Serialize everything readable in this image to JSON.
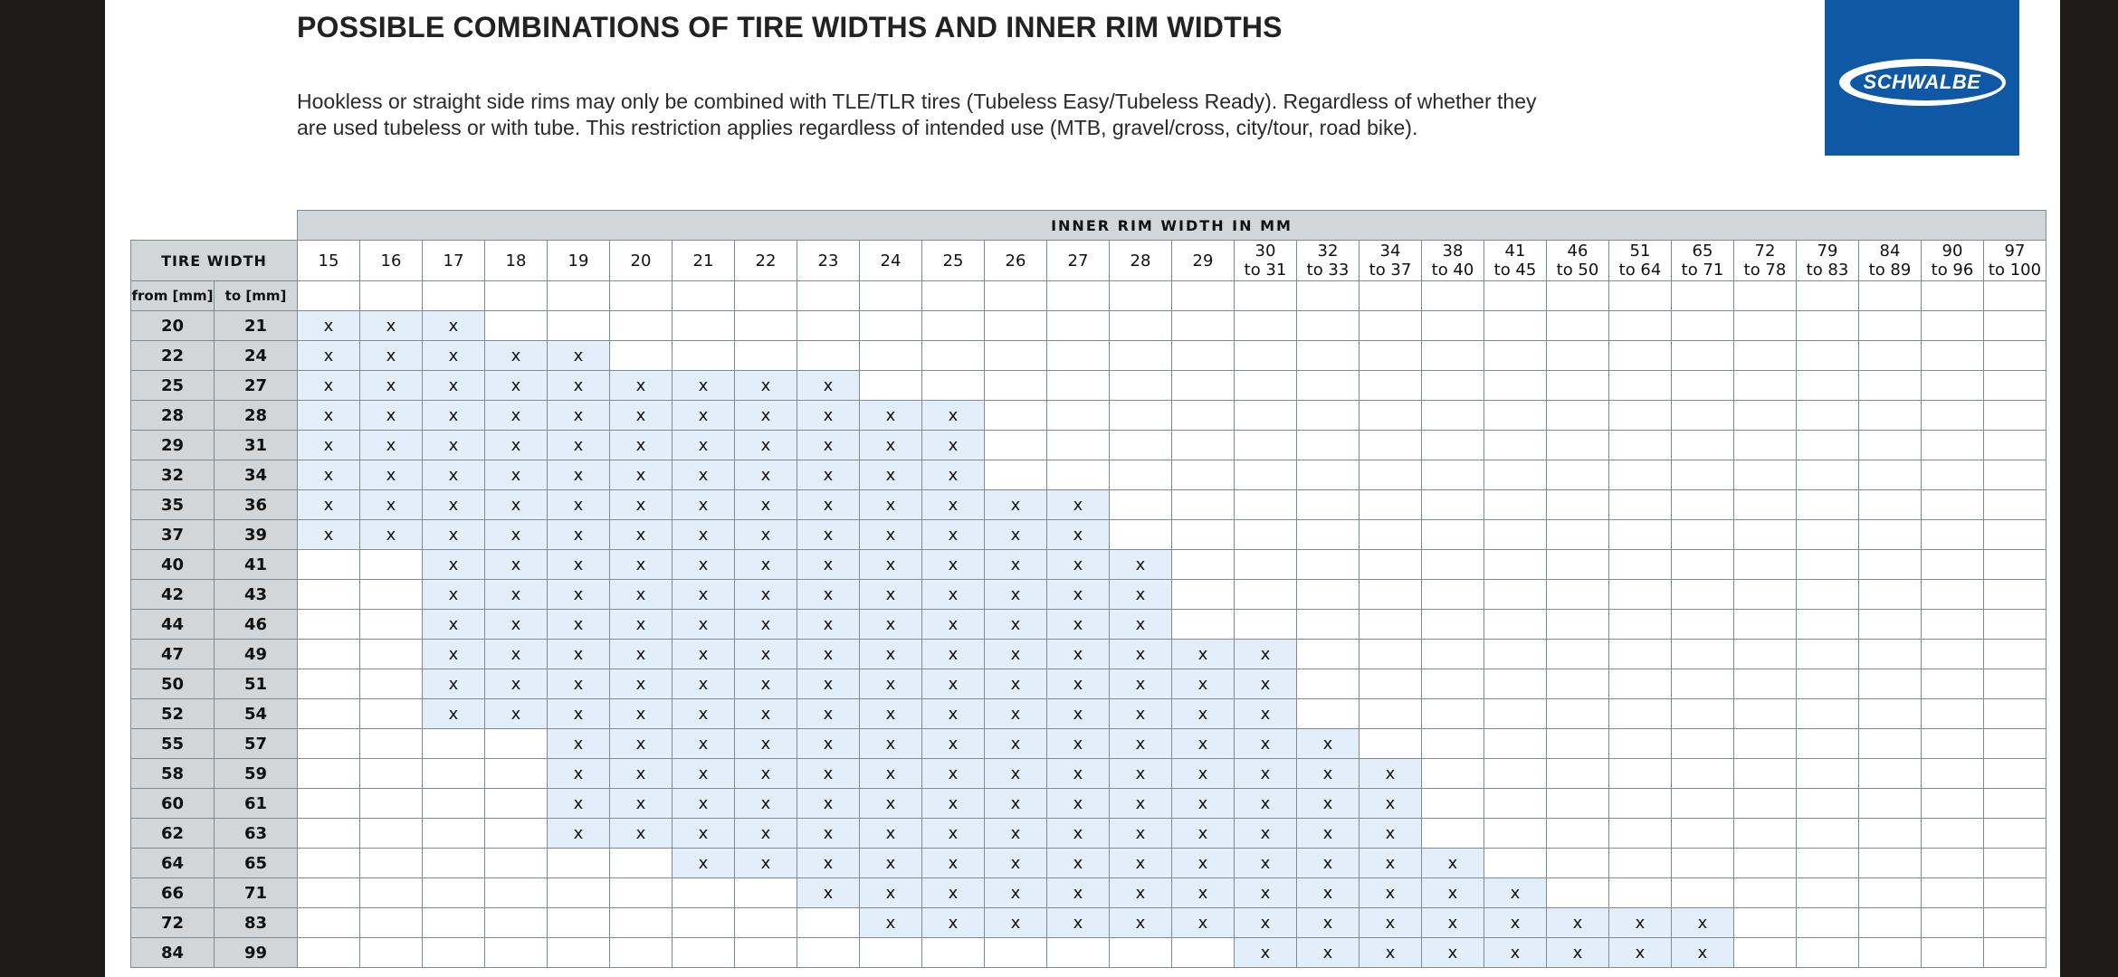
{
  "title": "POSSIBLE COMBINATIONS OF TIRE WIDTHS AND INNER RIM WIDTHS",
  "description": "Hookless or straight side rims may only be combined with TLE/TLR tires (Tubeless Easy/Tubeless Ready). Regardless of whether they are used tubeless or with tube. This restriction applies regardless of intended use (MTB, gravel/cross, city/tour, road bike).",
  "logo": {
    "text": "SCHWALBE",
    "color": "#0f58a6"
  },
  "table": {
    "inner_header": "INNER RIM WIDTH IN MM",
    "tire_header": "TIRE WIDTH",
    "from_label": "from [mm]",
    "to_label": "to [mm]",
    "mark": "x",
    "highlight_color": "#e2eef9",
    "rim_columns": [
      [
        "15",
        ""
      ],
      [
        "16",
        ""
      ],
      [
        "17",
        ""
      ],
      [
        "18",
        ""
      ],
      [
        "19",
        ""
      ],
      [
        "20",
        ""
      ],
      [
        "21",
        ""
      ],
      [
        "22",
        ""
      ],
      [
        "23",
        ""
      ],
      [
        "24",
        ""
      ],
      [
        "25",
        ""
      ],
      [
        "26",
        ""
      ],
      [
        "27",
        ""
      ],
      [
        "28",
        ""
      ],
      [
        "29",
        ""
      ],
      [
        "30",
        "to 31"
      ],
      [
        "32",
        "to 33"
      ],
      [
        "34",
        "to 37"
      ],
      [
        "38",
        "to 40"
      ],
      [
        "41",
        "to 45"
      ],
      [
        "46",
        "to 50"
      ],
      [
        "51",
        "to 64"
      ],
      [
        "65",
        "to 71"
      ],
      [
        "72",
        "to 78"
      ],
      [
        "79",
        "to 83"
      ],
      [
        "84",
        "to 89"
      ],
      [
        "90",
        "to 96"
      ],
      [
        "97",
        "to 100"
      ]
    ],
    "rows": [
      {
        "from": "20",
        "to": "21",
        "start": 0,
        "end": 2
      },
      {
        "from": "22",
        "to": "24",
        "start": 0,
        "end": 4
      },
      {
        "from": "25",
        "to": "27",
        "start": 0,
        "end": 8
      },
      {
        "from": "28",
        "to": "28",
        "start": 0,
        "end": 10
      },
      {
        "from": "29",
        "to": "31",
        "start": 0,
        "end": 10
      },
      {
        "from": "32",
        "to": "34",
        "start": 0,
        "end": 10
      },
      {
        "from": "35",
        "to": "36",
        "start": 0,
        "end": 12
      },
      {
        "from": "37",
        "to": "39",
        "start": 0,
        "end": 12
      },
      {
        "from": "40",
        "to": "41",
        "start": 2,
        "end": 13
      },
      {
        "from": "42",
        "to": "43",
        "start": 2,
        "end": 13
      },
      {
        "from": "44",
        "to": "46",
        "start": 2,
        "end": 13
      },
      {
        "from": "47",
        "to": "49",
        "start": 2,
        "end": 15
      },
      {
        "from": "50",
        "to": "51",
        "start": 2,
        "end": 15
      },
      {
        "from": "52",
        "to": "54",
        "start": 2,
        "end": 15
      },
      {
        "from": "55",
        "to": "57",
        "start": 4,
        "end": 16
      },
      {
        "from": "58",
        "to": "59",
        "start": 4,
        "end": 17
      },
      {
        "from": "60",
        "to": "61",
        "start": 4,
        "end": 17
      },
      {
        "from": "62",
        "to": "63",
        "start": 4,
        "end": 17
      },
      {
        "from": "64",
        "to": "65",
        "start": 6,
        "end": 18
      },
      {
        "from": "66",
        "to": "71",
        "start": 8,
        "end": 19
      },
      {
        "from": "72",
        "to": "83",
        "start": 9,
        "end": 22
      },
      {
        "from": "84",
        "to": "99",
        "start": 15,
        "end": 22
      }
    ]
  }
}
